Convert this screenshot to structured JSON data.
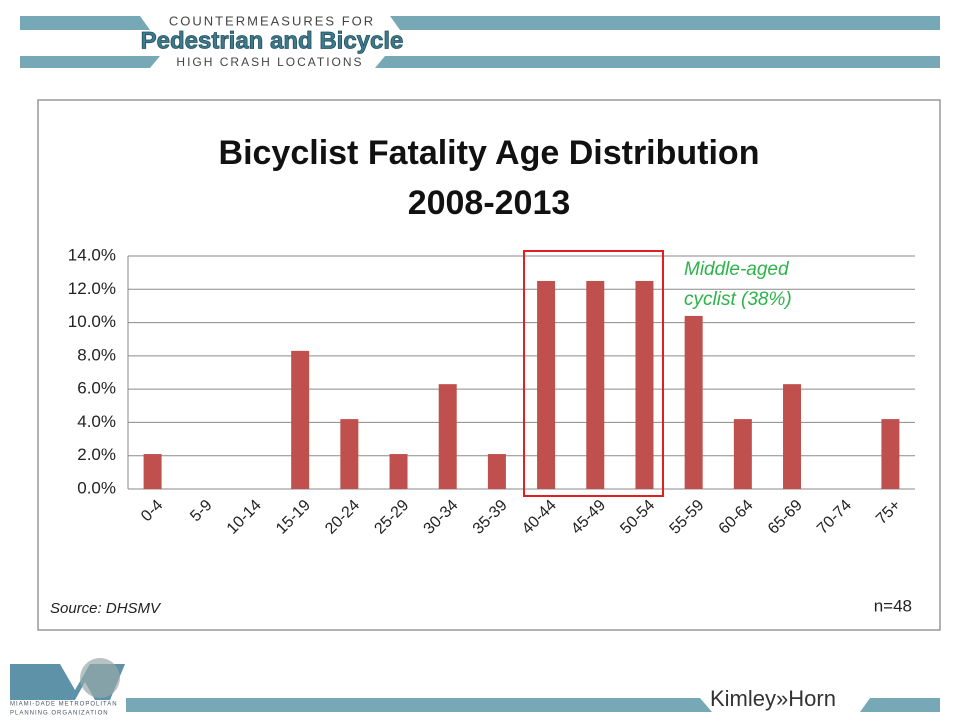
{
  "header": {
    "line1": "COUNTERMEASURES FOR",
    "line2": "Pedestrian and Bicycle",
    "line3": "HIGH CRASH LOCATIONS"
  },
  "footer": {
    "org_line1": "MIAMI-DADE METROPOLITAN",
    "org_line2": "PLANNING ORGANIZATION",
    "brand": "Kimley»Horn"
  },
  "chart_data": {
    "type": "bar",
    "title": "Bicyclist Fatality Age Distribution",
    "subtitle": "2008-2013",
    "categories": [
      "0-4",
      "5-9",
      "10-14",
      "15-19",
      "20-24",
      "25-29",
      "30-34",
      "35-39",
      "40-44",
      "45-49",
      "50-54",
      "55-59",
      "60-64",
      "65-69",
      "70-74",
      "75+"
    ],
    "values": [
      2.1,
      0,
      0,
      8.3,
      4.2,
      2.1,
      6.3,
      2.1,
      12.5,
      12.5,
      12.5,
      10.4,
      4.2,
      6.3,
      0,
      4.2
    ],
    "color": "#c0504d",
    "ylim": [
      0,
      14
    ],
    "yticks": [
      {
        "value": 0,
        "label": "0.0%"
      },
      {
        "value": 2,
        "label": "2.0%"
      },
      {
        "value": 4,
        "label": "4.0%"
      },
      {
        "value": 6,
        "label": "6.0%"
      },
      {
        "value": 8,
        "label": "8.0%"
      },
      {
        "value": 10,
        "label": "10.0%"
      },
      {
        "value": 12,
        "label": "12.0%"
      },
      {
        "value": 14,
        "label": "14.0%"
      }
    ],
    "grid": true,
    "annotation_lines": [
      "Middle-aged",
      "cyclist (38%)"
    ],
    "source": "Source: DHSMV",
    "note": "n=48"
  }
}
